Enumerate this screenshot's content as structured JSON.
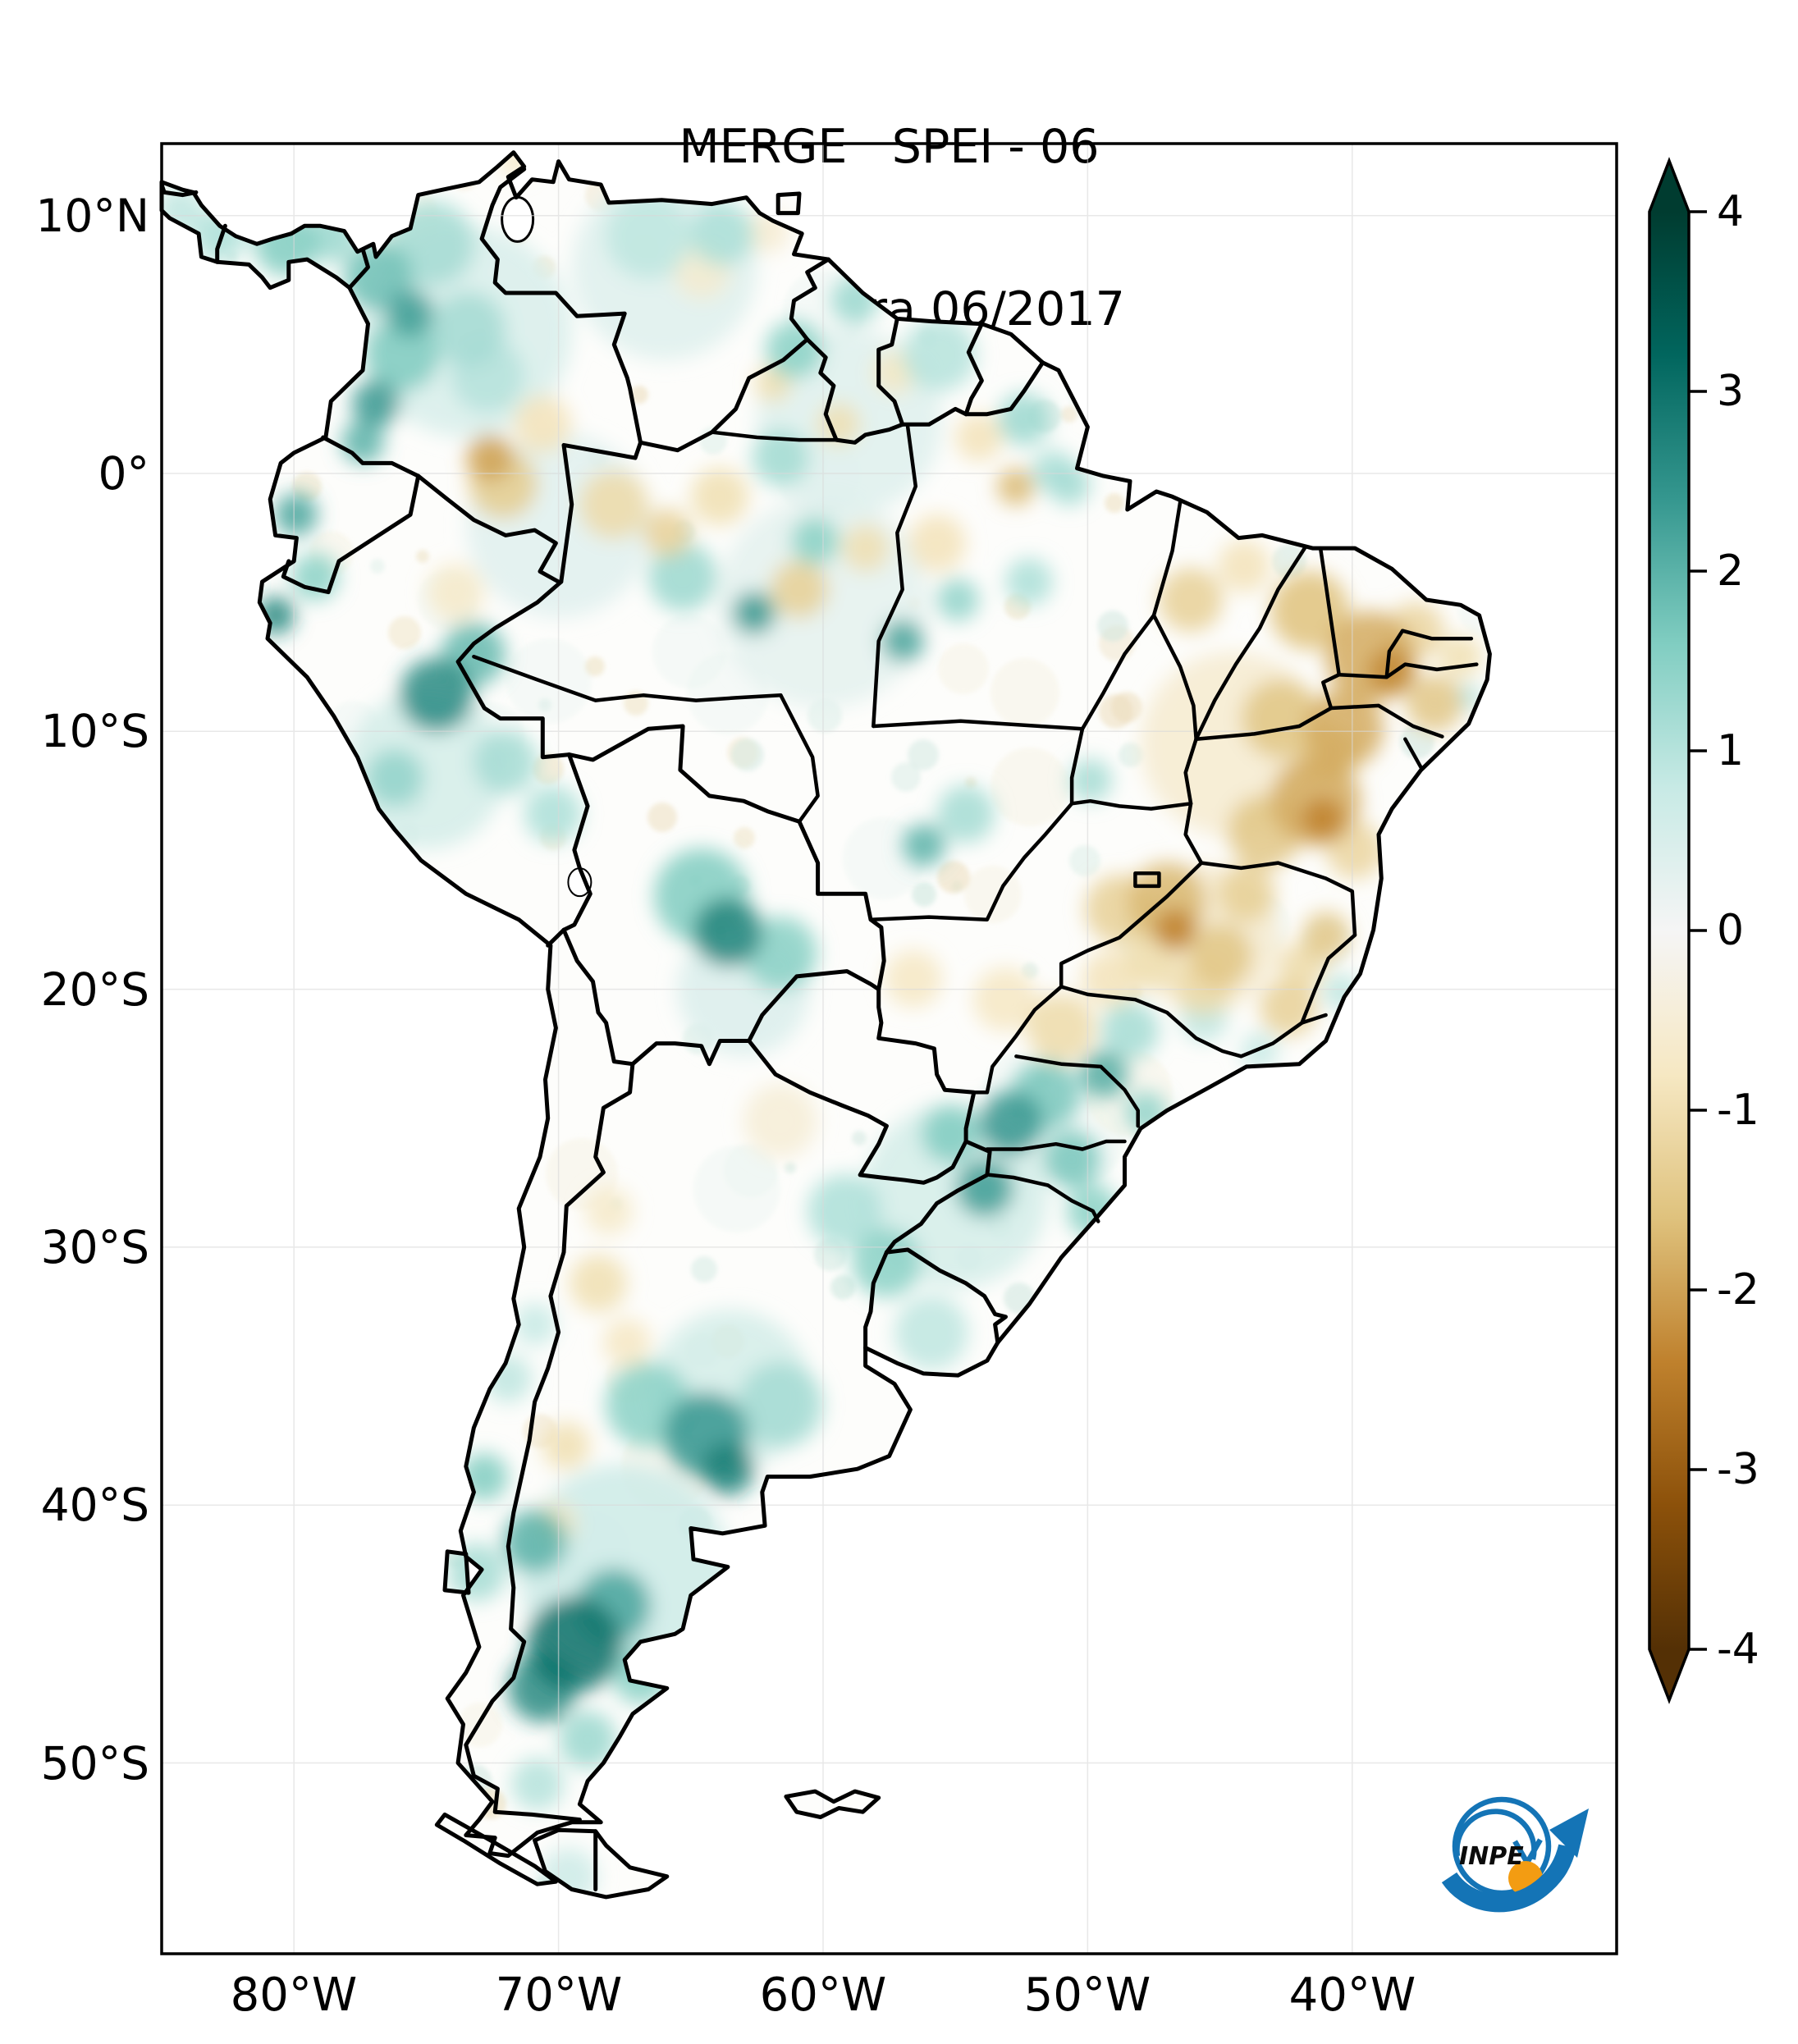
{
  "title": {
    "line1": "MERGE   SPEI - 06",
    "line2": "Válido para 06/2017"
  },
  "axes": {
    "lat_ticks": [
      {
        "label": "10°N",
        "lat": 10
      },
      {
        "label": "0°",
        "lat": 0
      },
      {
        "label": "10°S",
        "lat": -10
      },
      {
        "label": "20°S",
        "lat": -20
      },
      {
        "label": "30°S",
        "lat": -30
      },
      {
        "label": "40°S",
        "lat": -40
      },
      {
        "label": "50°S",
        "lat": -50
      }
    ],
    "lon_ticks": [
      {
        "label": "80°W",
        "lon": -80
      },
      {
        "label": "70°W",
        "lon": -70
      },
      {
        "label": "60°W",
        "lon": -60
      },
      {
        "label": "50°W",
        "lon": -50
      },
      {
        "label": "40°W",
        "lon": -40
      }
    ]
  },
  "colorbar": {
    "ticks": [
      {
        "label": "4",
        "value": 4
      },
      {
        "label": "3",
        "value": 3
      },
      {
        "label": "2",
        "value": 2
      },
      {
        "label": "1",
        "value": 1
      },
      {
        "label": "0",
        "value": 0
      },
      {
        "label": "-1",
        "value": -1
      },
      {
        "label": "-2",
        "value": -2
      },
      {
        "label": "-3",
        "value": -3
      },
      {
        "label": "-4",
        "value": -4
      }
    ],
    "min": -4,
    "max": 4,
    "extend": "both",
    "colormap": "BrBG",
    "stops": [
      {
        "value": -4.0,
        "hex": "#543005"
      },
      {
        "value": -3.2,
        "hex": "#8c510a"
      },
      {
        "value": -2.4,
        "hex": "#bf812d"
      },
      {
        "value": -1.6,
        "hex": "#dfc27d"
      },
      {
        "value": -0.8,
        "hex": "#f6e8c3"
      },
      {
        "value": 0.0,
        "hex": "#f5f5f5"
      },
      {
        "value": 0.8,
        "hex": "#c7eae5"
      },
      {
        "value": 1.6,
        "hex": "#80cdc1"
      },
      {
        "value": 2.4,
        "hex": "#35978f"
      },
      {
        "value": 3.2,
        "hex": "#01665e"
      },
      {
        "value": 4.0,
        "hex": "#003c30"
      }
    ]
  },
  "logo": {
    "label": "INPE",
    "blue": "#1474b6",
    "orange": "#f39c12"
  },
  "chart_data": {
    "type": "heatmap",
    "title": "MERGE   SPEI - 06",
    "subtitle": "Válido para 06/2017",
    "variable": "SPEI-06",
    "valid_for": "06/2017",
    "extent": {
      "lon_min": -85,
      "lon_max": -30,
      "lat_min": -57.4,
      "lat_max": 12.8
    },
    "legend_range": [
      -4,
      4
    ],
    "region_format": [
      "lon",
      "lat",
      "spei",
      "radius_deg"
    ],
    "anomaly_regions": [
      [
        -73.5,
        5.5,
        0.5,
        4.0
      ],
      [
        -66,
        8,
        0.4,
        3.5
      ],
      [
        -59,
        2,
        0.4,
        3.5
      ],
      [
        -75,
        -11.5,
        0.6,
        3.0
      ],
      [
        -70,
        -2,
        0.35,
        3.5
      ],
      [
        -60,
        -5,
        0.3,
        4.0
      ],
      [
        -55,
        -28,
        0.6,
        3.5
      ],
      [
        -67.5,
        -42.5,
        0.7,
        4.0
      ],
      [
        -63.5,
        -35.5,
        0.6,
        3.0
      ],
      [
        -44.5,
        -10.5,
        -0.6,
        3.5
      ],
      [
        -45.5,
        -18,
        -0.6,
        2.8
      ],
      [
        -63,
        -20,
        0.45,
        2.5
      ],
      [
        -80.3,
        8.9,
        1.6,
        1.2
      ],
      [
        -78.6,
        9.2,
        1.3,
        1.0
      ],
      [
        -82.8,
        9.2,
        1.1,
        1.0
      ],
      [
        -84.3,
        10.2,
        0.9,
        0.9
      ],
      [
        -76.8,
        7.6,
        1.8,
        1.3
      ],
      [
        -75.6,
        6.2,
        2.3,
        0.9
      ],
      [
        -74.8,
        8.9,
        1.2,
        1.6
      ],
      [
        -75.9,
        4.6,
        1.6,
        1.4
      ],
      [
        -76.9,
        2.7,
        2.4,
        0.9
      ],
      [
        -77.4,
        1.2,
        2.0,
        0.8
      ],
      [
        -73.4,
        5.6,
        1.2,
        1.4
      ],
      [
        -72.7,
        3.8,
        1.0,
        1.4
      ],
      [
        -63.8,
        9.3,
        1.1,
        1.2
      ],
      [
        -66.6,
        9.2,
        0.9,
        1.6
      ],
      [
        -61.1,
        4.8,
        1.5,
        1.1
      ],
      [
        -58.8,
        6.7,
        1.3,
        0.9
      ],
      [
        -55.6,
        4.6,
        1.0,
        1.4
      ],
      [
        -52.4,
        2.1,
        1.3,
        1.0
      ],
      [
        -51.3,
        0.1,
        1.1,
        0.8
      ],
      [
        -61.6,
        0.6,
        1.2,
        1.1
      ],
      [
        -79.9,
        -1.6,
        2.2,
        0.8
      ],
      [
        -80.7,
        -5.5,
        2.7,
        0.7
      ],
      [
        -79.2,
        -4.0,
        1.5,
        0.9
      ],
      [
        -74.6,
        -8.6,
        2.6,
        1.4
      ],
      [
        -73.2,
        -7.0,
        1.9,
        1.2
      ],
      [
        -76.2,
        -11.8,
        1.4,
        1.1
      ],
      [
        -72.0,
        -11.2,
        1.2,
        1.2
      ],
      [
        -70.2,
        -13.2,
        1.1,
        1.1
      ],
      [
        -65.3,
        -4.0,
        1.3,
        1.3
      ],
      [
        -62.6,
        -5.4,
        2.4,
        0.8
      ],
      [
        -60.3,
        -2.6,
        1.5,
        0.9
      ],
      [
        -57.0,
        -6.5,
        2.2,
        0.8
      ],
      [
        -54.9,
        -4.9,
        1.4,
        0.8
      ],
      [
        -52.2,
        -4.2,
        1.1,
        0.9
      ],
      [
        -50.7,
        -0.4,
        1.2,
        0.8
      ],
      [
        -63.6,
        -17.8,
        2.7,
        1.3
      ],
      [
        -64.6,
        -16.4,
        1.6,
        1.8
      ],
      [
        -61.6,
        -18.6,
        1.5,
        1.4
      ],
      [
        -56.2,
        -14.4,
        2.0,
        0.8
      ],
      [
        -54.6,
        -13.2,
        1.2,
        1.1
      ],
      [
        -49.9,
        -11.9,
        1.2,
        0.8
      ],
      [
        -52.9,
        -25.2,
        2.4,
        1.2
      ],
      [
        -51.6,
        -24.1,
        1.7,
        1.3
      ],
      [
        -53.9,
        -27.7,
        2.3,
        1.1
      ],
      [
        -50.6,
        -26.6,
        1.7,
        1.1
      ],
      [
        -49.4,
        -23.3,
        2.1,
        0.9
      ],
      [
        -48.4,
        -21.6,
        1.2,
        1.1
      ],
      [
        -55.2,
        -25.6,
        1.6,
        1.1
      ],
      [
        -49.8,
        -28.6,
        1.5,
        1.0
      ],
      [
        -47.8,
        -24.8,
        1.4,
        0.8
      ],
      [
        -57.6,
        -30.6,
        1.5,
        1.3
      ],
      [
        -59.2,
        -28.6,
        1.1,
        1.4
      ],
      [
        -55.9,
        -33.3,
        0.9,
        1.4
      ],
      [
        -64.4,
        -37.3,
        2.4,
        1.6
      ],
      [
        -63.6,
        -38.6,
        2.8,
        1.0
      ],
      [
        -66.6,
        -36.1,
        1.5,
        1.6
      ],
      [
        -61.6,
        -36.1,
        1.2,
        1.6
      ],
      [
        -69.4,
        -45.4,
        3.0,
        1.8
      ],
      [
        -70.6,
        -47.1,
        2.6,
        1.3
      ],
      [
        -67.9,
        -43.9,
        2.2,
        1.4
      ],
      [
        -70.9,
        -41.4,
        2.0,
        1.2
      ],
      [
        -66.9,
        -46.6,
        1.5,
        1.1
      ],
      [
        -68.9,
        -49.1,
        1.3,
        1.1
      ],
      [
        -70.8,
        -50.8,
        1.0,
        1.0
      ],
      [
        -72.8,
        -38.9,
        1.6,
        0.9
      ],
      [
        -73.1,
        -42.6,
        1.2,
        1.1
      ],
      [
        -71.9,
        -35.1,
        0.9,
        0.9
      ],
      [
        -70.9,
        -33.0,
        0.8,
        0.8
      ],
      [
        -35.6,
        -8.7,
        1.0,
        0.5
      ],
      [
        -40.4,
        -20.1,
        0.9,
        0.7
      ],
      [
        -45.6,
        -21.1,
        0.9,
        0.9
      ],
      [
        -69.6,
        -54.4,
        0.7,
        1.1
      ],
      [
        -43.5,
        -22.4,
        0.8,
        0.7
      ],
      [
        -72.6,
        0.6,
        -2.0,
        0.9
      ],
      [
        -72.1,
        -0.4,
        -1.4,
        1.3
      ],
      [
        -70.6,
        1.9,
        -0.9,
        1.1
      ],
      [
        -71.6,
        12.1,
        -0.8,
        0.6
      ],
      [
        -62.1,
        9.4,
        -0.6,
        0.8
      ],
      [
        -64.6,
        7.9,
        -0.6,
        1.1
      ],
      [
        -67.9,
        -1.2,
        -1.1,
        1.3
      ],
      [
        -65.9,
        -2.3,
        -1.3,
        0.9
      ],
      [
        -63.9,
        -0.9,
        -1.0,
        1.1
      ],
      [
        -60.9,
        -4.5,
        -1.3,
        1.1
      ],
      [
        -58.4,
        -2.9,
        -1.0,
        0.9
      ],
      [
        -55.7,
        -2.7,
        -0.9,
        1.1
      ],
      [
        -52.7,
        -0.5,
        -1.7,
        0.7
      ],
      [
        -54.1,
        1.4,
        -0.9,
        0.9
      ],
      [
        -59.4,
        1.9,
        -1.0,
        0.8
      ],
      [
        -57.3,
        3.9,
        -0.8,
        0.8
      ],
      [
        -61.9,
        3.5,
        -1.0,
        0.7
      ],
      [
        -46.1,
        -4.9,
        -1.3,
        1.2
      ],
      [
        -44.1,
        -3.6,
        -0.9,
        1.0
      ],
      [
        -41.6,
        -5.3,
        -1.6,
        1.5
      ],
      [
        -39.3,
        -7.1,
        -1.9,
        1.7
      ],
      [
        -38.5,
        -7.7,
        -2.3,
        0.9
      ],
      [
        -36.9,
        -8.9,
        -1.5,
        1.1
      ],
      [
        -40.3,
        -9.9,
        -1.9,
        1.5
      ],
      [
        -42.7,
        -9.5,
        -1.5,
        1.5
      ],
      [
        -37.6,
        -6.1,
        -1.2,
        1.1
      ],
      [
        -35.9,
        -7.1,
        -1.0,
        0.8
      ],
      [
        -41.4,
        -12.7,
        -1.9,
        1.7
      ],
      [
        -41.1,
        -13.4,
        -2.4,
        0.8
      ],
      [
        -43.3,
        -13.9,
        -1.5,
        1.4
      ],
      [
        -39.9,
        -14.6,
        -1.2,
        1.1
      ],
      [
        -40.9,
        -10.9,
        -1.6,
        1.1
      ],
      [
        -46.7,
        -17.7,
        -2.4,
        0.8
      ],
      [
        -47.0,
        -16.6,
        -1.7,
        1.5
      ],
      [
        -48.8,
        -16.9,
        -1.3,
        1.3
      ],
      [
        -45.0,
        -18.7,
        -1.5,
        1.2
      ],
      [
        -44.0,
        -16.3,
        -1.3,
        1.1
      ],
      [
        -45.6,
        -19.9,
        -1.1,
        1.1
      ],
      [
        -47.6,
        -18.9,
        -1.0,
        1.1
      ],
      [
        -42.4,
        -20.7,
        -1.3,
        1.1
      ],
      [
        -41.0,
        -17.9,
        -1.5,
        0.9
      ],
      [
        -41.9,
        -19.1,
        -1.1,
        0.9
      ],
      [
        -51.0,
        -21.5,
        -1.1,
        1.3
      ],
      [
        -53.1,
        -20.4,
        -0.8,
        1.2
      ],
      [
        -49.1,
        -19.6,
        -0.9,
        1.1
      ],
      [
        -56.6,
        -19.6,
        -0.8,
        1.1
      ],
      [
        -68.5,
        -31.4,
        -1.0,
        1.1
      ],
      [
        -67.4,
        -33.7,
        -0.8,
        0.9
      ],
      [
        -69.7,
        -37.7,
        -1.0,
        0.9
      ],
      [
        -70.1,
        -40.7,
        -0.8,
        0.8
      ],
      [
        -68.1,
        -28.6,
        -0.7,
        0.9
      ],
      [
        -61.6,
        -25.1,
        -0.5,
        1.4
      ],
      [
        -73.9,
        -4.6,
        -0.7,
        1.1
      ]
    ]
  }
}
